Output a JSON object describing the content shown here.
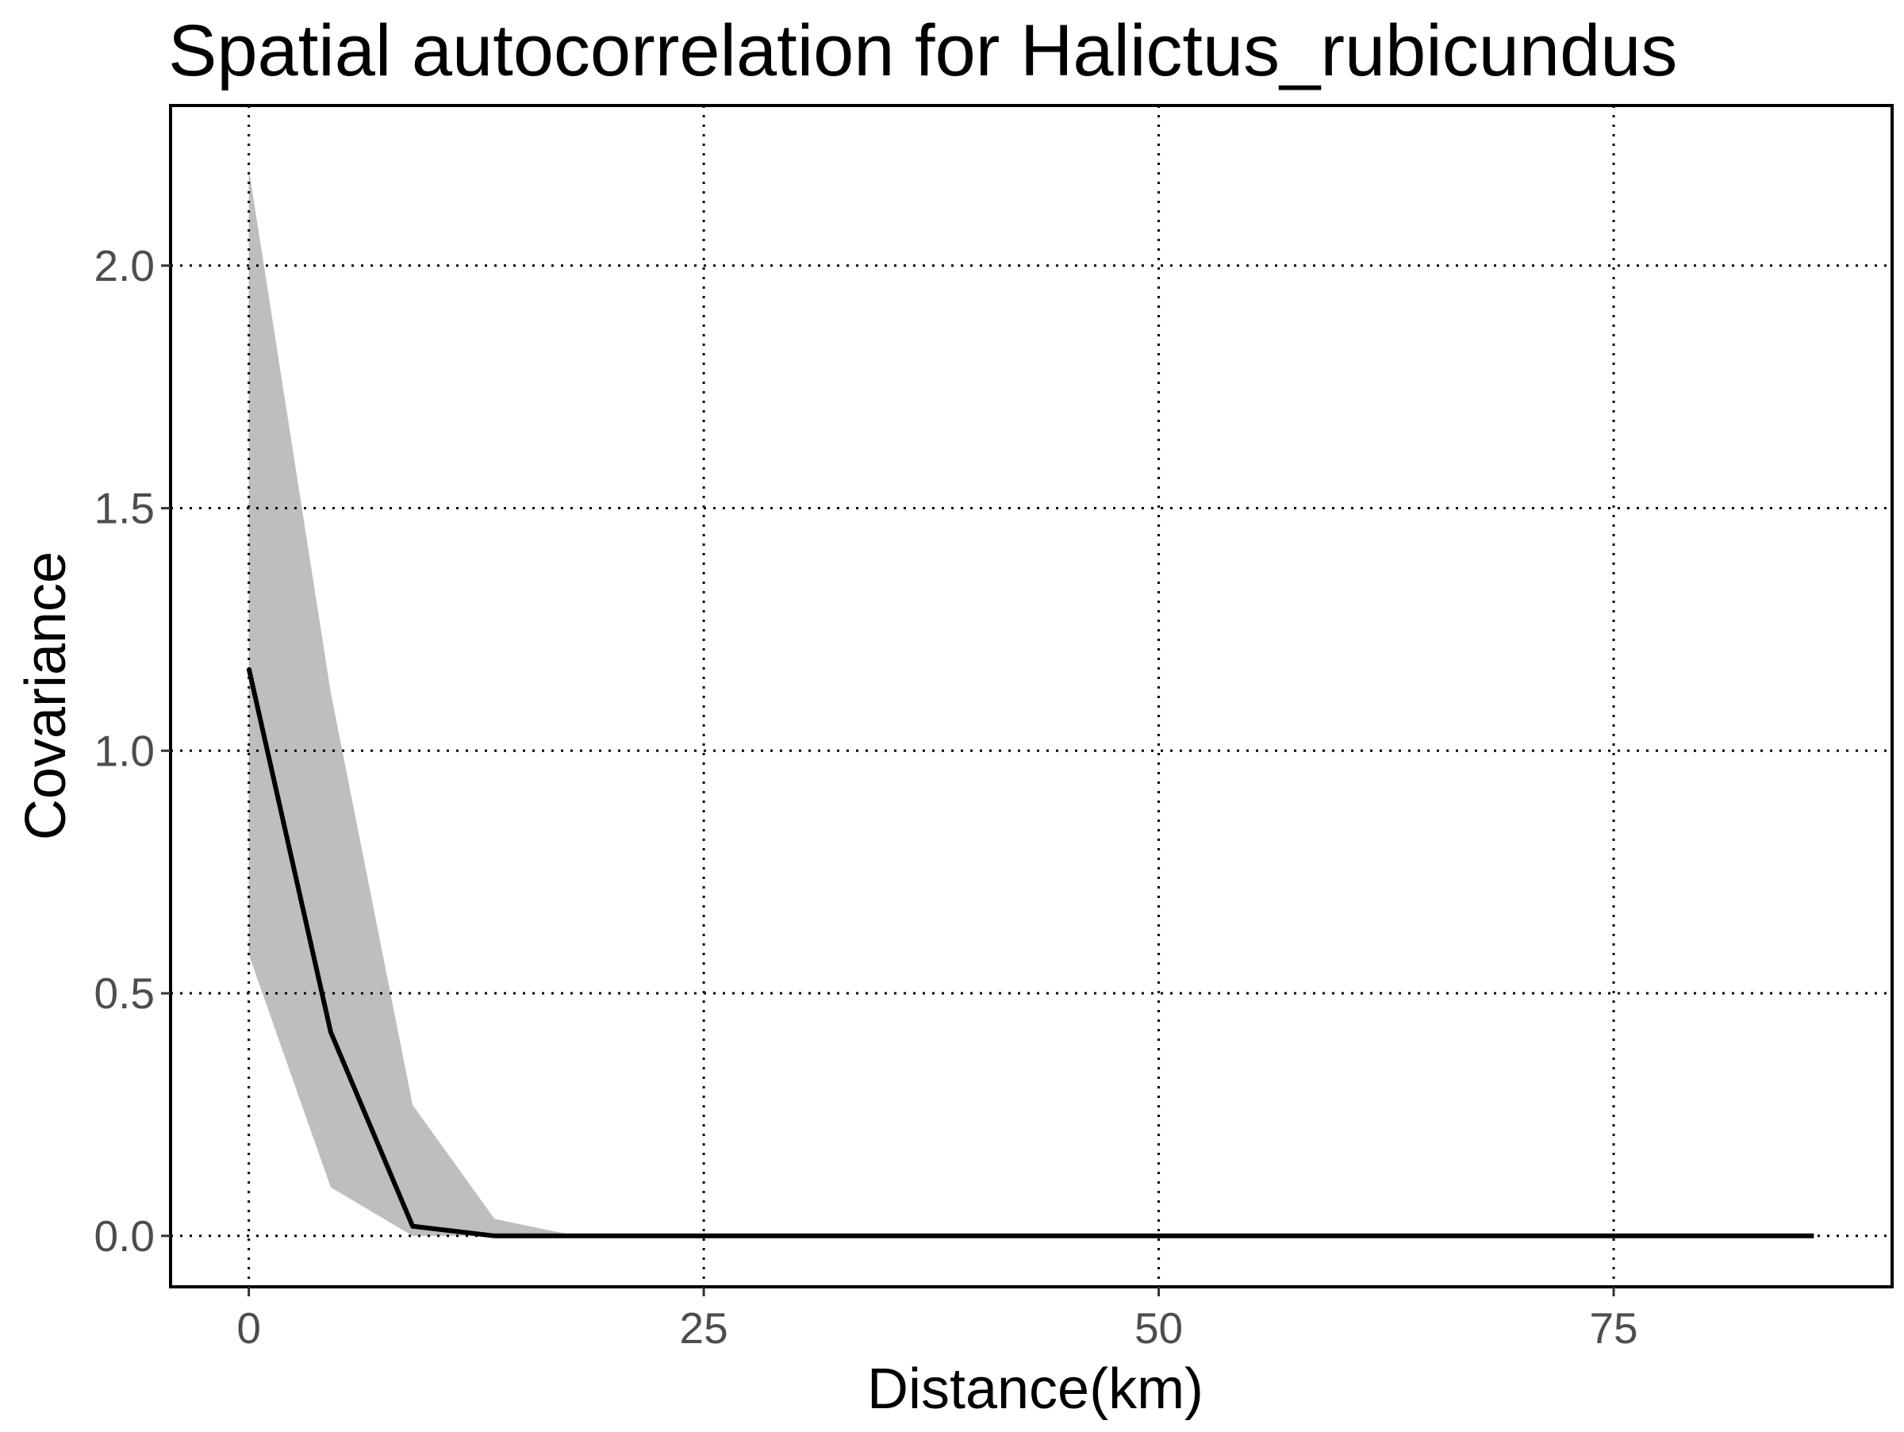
{
  "chart_data": {
    "type": "area",
    "title": "Spatial autocorrelation for Halictus_rubicundus",
    "xlabel": "Distance(km)",
    "ylabel": "Covariance",
    "xlim": [
      -4.3,
      90.3
    ],
    "ylim": [
      -0.105,
      2.33
    ],
    "x_ticks": [
      0,
      25,
      50,
      75
    ],
    "x_tick_labels": [
      "0",
      "25",
      "50",
      "75"
    ],
    "y_ticks": [
      0.0,
      0.5,
      1.0,
      1.5,
      2.0
    ],
    "y_tick_labels": [
      "0.0",
      "0.5",
      "1.0",
      "1.5",
      "2.0"
    ],
    "grid": "major, dotted",
    "legend": "none",
    "colors": {
      "line": "#000000",
      "band": "#bebebe",
      "grid": "#000000",
      "background": "#ffffff"
    },
    "series": [
      {
        "x": [
          0,
          4.5,
          9,
          13.5,
          18,
          86
        ],
        "y": [
          1.17,
          0.42,
          0.02,
          0.0,
          0.0,
          0.0
        ],
        "ymin": [
          0.58,
          0.1,
          0.0,
          0.0,
          0.0,
          0.0
        ],
        "ymax": [
          2.2,
          1.12,
          0.27,
          0.035,
          0.0,
          0.0
        ]
      }
    ]
  }
}
